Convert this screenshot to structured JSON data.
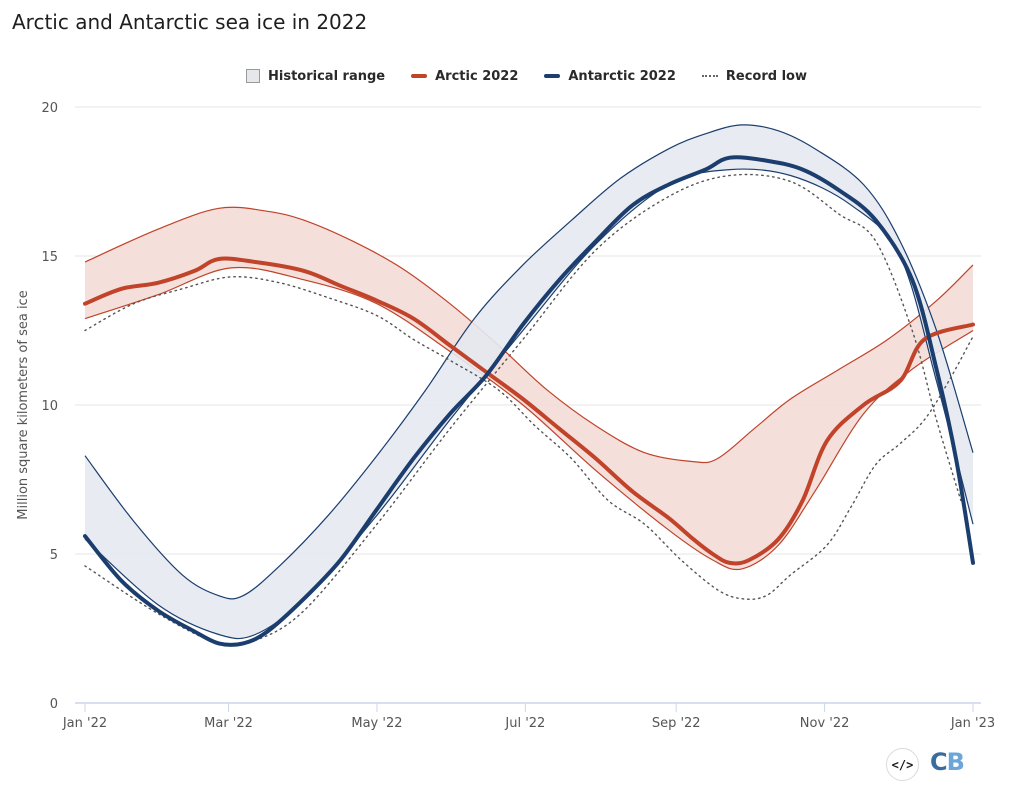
{
  "title": "Arctic and Antarctic sea ice in 2022",
  "legend": {
    "items": [
      {
        "label": "Historical range",
        "kind": "range"
      },
      {
        "label": "Arctic 2022",
        "kind": "line",
        "color": "#c0432a"
      },
      {
        "label": "Antarctic 2022",
        "kind": "line",
        "color": "#1b3e6e"
      },
      {
        "label": "Record low",
        "kind": "dots"
      }
    ]
  },
  "footer": {
    "embed_icon": "</>",
    "embed_name": "embed-code-icon",
    "logo_c": "C",
    "logo_b": "B"
  },
  "colors": {
    "arctic": "#c0432a",
    "arctic_fill": "#f2d9d5",
    "antarctic": "#1b3e6e",
    "antarctic_fill": "#e6e9ef",
    "record_low": "#555555",
    "grid": "#e6e6e6",
    "axis": "#ccd6eb"
  },
  "chart_data": {
    "type": "line",
    "title": "Arctic and Antarctic sea ice in 2022",
    "xlabel": "",
    "ylabel": "Million square kilometers of sea ice",
    "ylim": [
      0,
      20
    ],
    "xlim_days": [
      0,
      365
    ],
    "yticks": [
      0,
      5,
      10,
      15,
      20
    ],
    "xticks": [
      {
        "day": 0,
        "label": "Jan '22"
      },
      {
        "day": 59,
        "label": "Mar '22"
      },
      {
        "day": 120,
        "label": "May '22"
      },
      {
        "day": 181,
        "label": "Jul '22"
      },
      {
        "day": 243,
        "label": "Sep '22"
      },
      {
        "day": 304,
        "label": "Nov '22"
      },
      {
        "day": 365,
        "label": "Jan '23"
      }
    ],
    "grid": true,
    "legend_position": "top-center",
    "x_unit": "day of year 2022",
    "series": [
      {
        "name": "Arctic historical range",
        "kind": "range",
        "upper": [
          [
            0,
            14.8
          ],
          [
            30,
            15.9
          ],
          [
            55,
            16.6
          ],
          [
            75,
            16.5
          ],
          [
            90,
            16.2
          ],
          [
            110,
            15.5
          ],
          [
            130,
            14.6
          ],
          [
            150,
            13.4
          ],
          [
            170,
            12.0
          ],
          [
            190,
            10.5
          ],
          [
            210,
            9.3
          ],
          [
            230,
            8.4
          ],
          [
            250,
            8.1
          ],
          [
            260,
            8.2
          ],
          [
            275,
            9.2
          ],
          [
            290,
            10.2
          ],
          [
            310,
            11.2
          ],
          [
            330,
            12.2
          ],
          [
            350,
            13.5
          ],
          [
            365,
            14.7
          ]
        ],
        "lower": [
          [
            0,
            12.9
          ],
          [
            30,
            13.7
          ],
          [
            60,
            14.6
          ],
          [
            90,
            14.2
          ],
          [
            120,
            13.4
          ],
          [
            150,
            11.8
          ],
          [
            180,
            10.0
          ],
          [
            210,
            7.8
          ],
          [
            240,
            5.8
          ],
          [
            258,
            4.8
          ],
          [
            270,
            4.5
          ],
          [
            285,
            5.3
          ],
          [
            300,
            7.1
          ],
          [
            320,
            9.7
          ],
          [
            340,
            11.2
          ],
          [
            365,
            12.5
          ]
        ]
      },
      {
        "name": "Antarctic historical range",
        "kind": "range",
        "upper": [
          [
            0,
            8.3
          ],
          [
            20,
            6.1
          ],
          [
            40,
            4.3
          ],
          [
            55,
            3.6
          ],
          [
            65,
            3.6
          ],
          [
            80,
            4.6
          ],
          [
            100,
            6.3
          ],
          [
            120,
            8.3
          ],
          [
            140,
            10.5
          ],
          [
            160,
            12.9
          ],
          [
            180,
            14.7
          ],
          [
            200,
            16.2
          ],
          [
            220,
            17.6
          ],
          [
            240,
            18.6
          ],
          [
            255,
            19.1
          ],
          [
            270,
            19.4
          ],
          [
            285,
            19.2
          ],
          [
            300,
            18.6
          ],
          [
            320,
            17.4
          ],
          [
            335,
            15.5
          ],
          [
            350,
            12.5
          ],
          [
            365,
            8.4
          ]
        ],
        "lower": [
          [
            0,
            5.5
          ],
          [
            30,
            3.3
          ],
          [
            55,
            2.3
          ],
          [
            70,
            2.3
          ],
          [
            90,
            3.5
          ],
          [
            120,
            6.3
          ],
          [
            150,
            9.5
          ],
          [
            180,
            12.5
          ],
          [
            210,
            15.4
          ],
          [
            240,
            17.4
          ],
          [
            265,
            17.9
          ],
          [
            290,
            17.7
          ],
          [
            315,
            16.7
          ],
          [
            335,
            15.0
          ],
          [
            350,
            10.8
          ],
          [
            365,
            6.0
          ]
        ]
      },
      {
        "name": "Arctic record low",
        "kind": "dots",
        "points": [
          [
            0,
            12.5
          ],
          [
            20,
            13.4
          ],
          [
            40,
            13.9
          ],
          [
            60,
            14.3
          ],
          [
            80,
            14.1
          ],
          [
            100,
            13.6
          ],
          [
            120,
            13.0
          ],
          [
            135,
            12.2
          ],
          [
            150,
            11.5
          ],
          [
            170,
            10.5
          ],
          [
            185,
            9.3
          ],
          [
            200,
            8.2
          ],
          [
            215,
            6.8
          ],
          [
            230,
            6.0
          ],
          [
            245,
            4.8
          ],
          [
            260,
            3.8
          ],
          [
            270,
            3.5
          ],
          [
            280,
            3.6
          ],
          [
            290,
            4.3
          ],
          [
            305,
            5.3
          ],
          [
            315,
            6.6
          ],
          [
            325,
            8.0
          ],
          [
            335,
            8.7
          ],
          [
            345,
            9.5
          ],
          [
            355,
            10.8
          ],
          [
            365,
            12.3
          ]
        ]
      },
      {
        "name": "Antarctic record low",
        "kind": "dots",
        "points": [
          [
            0,
            4.6
          ],
          [
            30,
            3.0
          ],
          [
            55,
            2.0
          ],
          [
            70,
            2.1
          ],
          [
            90,
            3.1
          ],
          [
            120,
            6.0
          ],
          [
            150,
            9.2
          ],
          [
            180,
            12.2
          ],
          [
            210,
            15.2
          ],
          [
            240,
            17.0
          ],
          [
            265,
            17.7
          ],
          [
            290,
            17.5
          ],
          [
            310,
            16.4
          ],
          [
            325,
            15.5
          ],
          [
            340,
            12.5
          ],
          [
            350,
            9.5
          ],
          [
            360,
            6.8
          ]
        ]
      },
      {
        "name": "Arctic 2022",
        "kind": "line",
        "points": [
          [
            0,
            13.4
          ],
          [
            15,
            13.9
          ],
          [
            30,
            14.1
          ],
          [
            45,
            14.5
          ],
          [
            55,
            14.9
          ],
          [
            70,
            14.8
          ],
          [
            90,
            14.5
          ],
          [
            105,
            14.0
          ],
          [
            120,
            13.5
          ],
          [
            135,
            12.9
          ],
          [
            150,
            12.0
          ],
          [
            165,
            11.1
          ],
          [
            180,
            10.2
          ],
          [
            195,
            9.2
          ],
          [
            210,
            8.2
          ],
          [
            225,
            7.1
          ],
          [
            240,
            6.2
          ],
          [
            250,
            5.5
          ],
          [
            258,
            5.0
          ],
          [
            265,
            4.7
          ],
          [
            273,
            4.8
          ],
          [
            285,
            5.5
          ],
          [
            295,
            6.8
          ],
          [
            305,
            8.8
          ],
          [
            320,
            10.0
          ],
          [
            335,
            10.8
          ],
          [
            345,
            12.2
          ],
          [
            365,
            12.7
          ]
        ]
      },
      {
        "name": "Antarctic 2022",
        "kind": "line",
        "points": [
          [
            0,
            5.6
          ],
          [
            15,
            4.1
          ],
          [
            30,
            3.1
          ],
          [
            45,
            2.4
          ],
          [
            55,
            2.0
          ],
          [
            65,
            2.0
          ],
          [
            75,
            2.4
          ],
          [
            90,
            3.5
          ],
          [
            105,
            4.8
          ],
          [
            120,
            6.5
          ],
          [
            135,
            8.2
          ],
          [
            150,
            9.7
          ],
          [
            165,
            11.0
          ],
          [
            180,
            12.7
          ],
          [
            195,
            14.2
          ],
          [
            210,
            15.5
          ],
          [
            225,
            16.7
          ],
          [
            240,
            17.4
          ],
          [
            255,
            17.9
          ],
          [
            265,
            18.3
          ],
          [
            280,
            18.2
          ],
          [
            295,
            17.9
          ],
          [
            310,
            17.2
          ],
          [
            325,
            16.2
          ],
          [
            340,
            14.2
          ],
          [
            350,
            11.2
          ],
          [
            358,
            8.2
          ],
          [
            365,
            4.7
          ]
        ]
      }
    ]
  }
}
